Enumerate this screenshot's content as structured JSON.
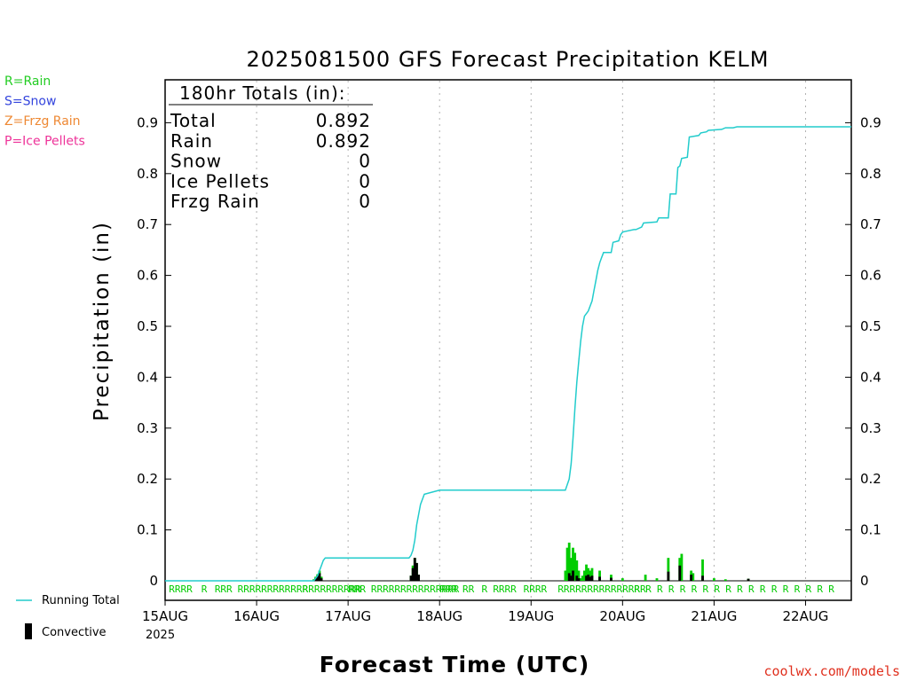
{
  "chart_data": {
    "type": "bar",
    "title": "2025081500 GFS Forecast Precipitation KELM",
    "xlabel": "Forecast Time (UTC)",
    "ylabel": "Precipitation (in)",
    "ylim": [
      0,
      0.98
    ],
    "yticks": [
      "0",
      "0.1",
      "0.2",
      "0.3",
      "0.4",
      "0.5",
      "0.6",
      "0.7",
      "0.8",
      "0.9"
    ],
    "xlim_hours": [
      0,
      180
    ],
    "xtick_labels": [
      "15AUG",
      "16AUG",
      "17AUG",
      "18AUG",
      "19AUG",
      "20AUG",
      "21AUG",
      "22AUG"
    ],
    "year_label": "2025",
    "grid": "vertical dotted at each day",
    "legend_left": [
      {
        "label": "R=Rain",
        "color": "#22cc22"
      },
      {
        "label": "S=Snow",
        "color": "#3344dd"
      },
      {
        "label": "Z=Frzg Rain",
        "color": "#ee8833"
      },
      {
        "label": "P=Ice Pellets",
        "color": "#ee3399"
      }
    ],
    "legend_bottom": [
      {
        "label": "Running Total",
        "color": "#22cccc",
        "kind": "line"
      },
      {
        "label": "Convective",
        "color": "#000000",
        "kind": "bar"
      }
    ],
    "totals_box": {
      "header": "180hr Totals (in):",
      "rows": [
        {
          "label": "Total",
          "value": "0.892"
        },
        {
          "label": "Rain",
          "value": "0.892"
        },
        {
          "label": "Snow",
          "value": "0"
        },
        {
          "label": "Ice Pellets",
          "value": "0"
        },
        {
          "label": "Frzg Rain",
          "value": "0"
        }
      ]
    },
    "credit": "coolwx.com/models",
    "series": [
      {
        "name": "Running Total",
        "color": "#22cccc",
        "x_hours": [
          0,
          39,
          40,
          40.5,
          41,
          41.5,
          42,
          64,
          64.5,
          65,
          65.5,
          66,
          67,
          68,
          72,
          105,
          106,
          106.5,
          107,
          107.5,
          108,
          108.5,
          109,
          109.5,
          110,
          111,
          112,
          112.5,
          113,
          113.5,
          114,
          114.5,
          115,
          117,
          117.5,
          119,
          119.5,
          120,
          120.5,
          123,
          123.5,
          125,
          125.5,
          129,
          129.5,
          132,
          132.5,
          134,
          134.5,
          135,
          135.5,
          137,
          137.5,
          140,
          140.5,
          142,
          142.5,
          146,
          147,
          149,
          150,
          152,
          152.5,
          180
        ],
        "values": [
          0,
          0,
          0.01,
          0.02,
          0.03,
          0.04,
          0.045,
          0.045,
          0.05,
          0.06,
          0.08,
          0.11,
          0.15,
          0.17,
          0.178,
          0.178,
          0.2,
          0.23,
          0.28,
          0.34,
          0.39,
          0.43,
          0.47,
          0.5,
          0.52,
          0.53,
          0.55,
          0.57,
          0.59,
          0.61,
          0.625,
          0.635,
          0.645,
          0.645,
          0.665,
          0.668,
          0.68,
          0.685,
          0.686,
          0.69,
          0.69,
          0.695,
          0.703,
          0.705,
          0.713,
          0.713,
          0.76,
          0.76,
          0.812,
          0.815,
          0.83,
          0.832,
          0.872,
          0.875,
          0.88,
          0.882,
          0.885,
          0.887,
          0.89,
          0.89,
          0.892,
          0.892,
          0.892,
          0.892
        ]
      },
      {
        "name": "Rain",
        "color": "#00cc00",
        "x_hours": [
          39,
          39.5,
          40,
          40.5,
          41,
          64.5,
          65,
          65.5,
          66,
          66.5,
          105,
          105.5,
          106,
          106.5,
          107,
          107.5,
          108,
          108.5,
          109,
          109.5,
          110,
          110.5,
          111,
          111.5,
          112,
          114,
          117,
          120,
          126,
          129,
          132,
          135,
          135.5,
          138,
          138.5,
          141,
          144,
          147,
          153
        ],
        "values": [
          0.003,
          0.008,
          0.013,
          0.02,
          0.008,
          0.01,
          0.03,
          0.045,
          0.035,
          0.012,
          0.02,
          0.065,
          0.075,
          0.045,
          0.065,
          0.055,
          0.04,
          0.02,
          0.005,
          0.01,
          0.02,
          0.032,
          0.025,
          0.02,
          0.025,
          0.02,
          0.012,
          0.005,
          0.012,
          0.005,
          0.045,
          0.045,
          0.053,
          0.02,
          0.015,
          0.042,
          0.005,
          0.003,
          0.004
        ]
      },
      {
        "name": "Convective",
        "color": "#000000",
        "x_hours": [
          39.5,
          40,
          40.5,
          41,
          64.5,
          65,
          65.5,
          66,
          66.5,
          106,
          106.5,
          107,
          108,
          108.5,
          110.5,
          111,
          111.5,
          112,
          114,
          117,
          132,
          135,
          138,
          141,
          153
        ],
        "values": [
          0.005,
          0.01,
          0.015,
          0.005,
          0.01,
          0.025,
          0.045,
          0.035,
          0.012,
          0.015,
          0.01,
          0.02,
          0.01,
          0.005,
          0.01,
          0.012,
          0.008,
          0.01,
          0.008,
          0.006,
          0.018,
          0.03,
          0.012,
          0.01,
          0.004
        ]
      }
    ],
    "ptype_labels": [
      {
        "hour": 1,
        "text": "RRRR"
      },
      {
        "hour": 9.5,
        "text": "R"
      },
      {
        "hour": 13,
        "text": "RRR"
      },
      {
        "hour": 19,
        "text": "RRRRRRRRRRRR"
      },
      {
        "hour": 36,
        "text": "RRRRRRRRRR"
      },
      {
        "hour": 48,
        "text": "RRR"
      },
      {
        "hour": 54,
        "text": "RRRRRRRRRRRRRRR"
      },
      {
        "hour": 72,
        "text": "RRR"
      },
      {
        "hour": 78,
        "text": "RR"
      },
      {
        "hour": 83,
        "text": "R"
      },
      {
        "hour": 86,
        "text": "RRRR"
      },
      {
        "hour": 94,
        "text": "RRRR"
      },
      {
        "hour": 103,
        "text": "RRRRRRRRRRRRRRR"
      },
      {
        "hour": 123,
        "text": "R"
      },
      {
        "hour": 126,
        "text": "R"
      },
      {
        "hour": 129,
        "text": "R"
      },
      {
        "hour": 132,
        "text": "R"
      },
      {
        "hour": 135,
        "text": "R"
      },
      {
        "hour": 138,
        "text": "R"
      },
      {
        "hour": 141,
        "text": "R"
      },
      {
        "hour": 144,
        "text": "R"
      },
      {
        "hour": 147,
        "text": "R"
      },
      {
        "hour": 150,
        "text": "R"
      },
      {
        "hour": 153,
        "text": "R"
      },
      {
        "hour": 156,
        "text": "R"
      },
      {
        "hour": 159,
        "text": "R"
      },
      {
        "hour": 162,
        "text": "R"
      },
      {
        "hour": 165,
        "text": "R"
      },
      {
        "hour": 168,
        "text": "R"
      },
      {
        "hour": 171,
        "text": "R"
      },
      {
        "hour": 174,
        "text": "R"
      }
    ]
  }
}
